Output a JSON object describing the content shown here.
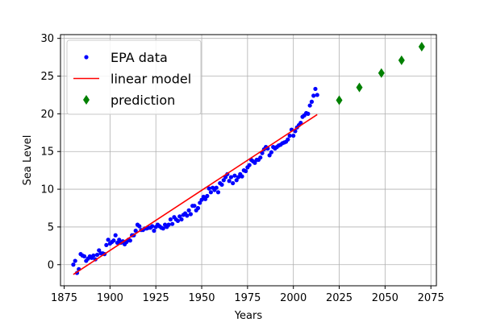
{
  "chart_data": {
    "type": "scatter",
    "xlabel": "Years",
    "ylabel": "Sea Level",
    "xlim": [
      1873,
      2078
    ],
    "ylim": [
      -2.8,
      30.5
    ],
    "xticks": [
      1875,
      1900,
      1925,
      1950,
      1975,
      2000,
      2025,
      2050,
      2075
    ],
    "yticks": [
      0,
      5,
      10,
      15,
      20,
      25,
      30
    ],
    "grid": true,
    "legend_position": "upper-left",
    "series": [
      {
        "name": "EPA data",
        "kind": "scatter",
        "color": "#0000ff",
        "marker": "circle",
        "x": [
          1880,
          1881,
          1882,
          1883,
          1884,
          1885,
          1886,
          1887,
          1888,
          1889,
          1890,
          1891,
          1892,
          1893,
          1894,
          1895,
          1896,
          1897,
          1898,
          1899,
          1900,
          1901,
          1902,
          1903,
          1904,
          1905,
          1906,
          1907,
          1908,
          1909,
          1910,
          1911,
          1912,
          1913,
          1914,
          1915,
          1916,
          1917,
          1918,
          1919,
          1920,
          1921,
          1922,
          1923,
          1924,
          1925,
          1926,
          1927,
          1928,
          1929,
          1930,
          1931,
          1932,
          1933,
          1934,
          1935,
          1936,
          1937,
          1938,
          1939,
          1940,
          1941,
          1942,
          1943,
          1944,
          1945,
          1946,
          1947,
          1948,
          1949,
          1950,
          1951,
          1952,
          1953,
          1954,
          1955,
          1956,
          1957,
          1958,
          1959,
          1960,
          1961,
          1962,
          1963,
          1964,
          1965,
          1966,
          1967,
          1968,
          1969,
          1970,
          1971,
          1972,
          1973,
          1974,
          1975,
          1976,
          1977,
          1978,
          1979,
          1980,
          1981,
          1982,
          1983,
          1984,
          1985,
          1986,
          1987,
          1988,
          1989,
          1990,
          1991,
          1992,
          1993,
          1994,
          1995,
          1996,
          1997,
          1998,
          1999,
          2000,
          2001,
          2002,
          2003,
          2004,
          2005,
          2006,
          2007,
          2008,
          2009,
          2010,
          2011,
          2012,
          2013
        ],
        "y": [
          0.0,
          0.5,
          -1.1,
          -0.6,
          1.4,
          1.2,
          1.1,
          0.5,
          0.8,
          1.1,
          0.9,
          1.2,
          0.7,
          1.3,
          1.9,
          1.5,
          1.5,
          1.4,
          2.6,
          3.3,
          2.8,
          3.0,
          3.2,
          3.9,
          2.9,
          3.3,
          2.9,
          3.1,
          2.7,
          3.0,
          3.3,
          3.2,
          3.9,
          3.9,
          4.5,
          5.3,
          5.1,
          4.6,
          4.6,
          4.8,
          4.8,
          4.9,
          4.9,
          5.1,
          4.5,
          5.0,
          5.3,
          5.1,
          4.9,
          4.8,
          5.3,
          5.0,
          5.3,
          6.0,
          5.4,
          6.3,
          6.0,
          5.8,
          6.4,
          6.0,
          6.6,
          6.8,
          6.5,
          7.2,
          6.7,
          7.8,
          7.8,
          7.2,
          7.5,
          8.2,
          8.6,
          9.0,
          8.7,
          9.1,
          10.1,
          9.6,
          10.2,
          9.9,
          10.2,
          9.6,
          10.8,
          10.6,
          11.2,
          11.6,
          12.0,
          11.1,
          11.6,
          10.8,
          11.8,
          11.2,
          11.6,
          12.0,
          11.7,
          12.5,
          12.4,
          12.9,
          13.2,
          13.9,
          13.7,
          13.5,
          13.9,
          13.9,
          14.2,
          14.8,
          15.3,
          15.6,
          15.4,
          14.5,
          14.9,
          15.6,
          15.4,
          15.6,
          15.8,
          15.9,
          16.1,
          16.2,
          16.3,
          16.6,
          17.1,
          17.9,
          17.1,
          17.7,
          18.2,
          18.5,
          18.8,
          19.6,
          19.8,
          20.1,
          20.0,
          21.1,
          21.6,
          22.4,
          23.3,
          22.5
        ]
      },
      {
        "name": "linear model",
        "kind": "line",
        "color": "#ff0000",
        "x": [
          1880,
          2013
        ],
        "y": [
          -1.3,
          19.9
        ]
      },
      {
        "name": "prediction",
        "kind": "scatter",
        "color": "#008000",
        "marker": "diamond",
        "x": [
          2025,
          2036,
          2048,
          2059,
          2070
        ],
        "y": [
          21.8,
          23.5,
          25.4,
          27.1,
          28.9
        ]
      }
    ]
  }
}
